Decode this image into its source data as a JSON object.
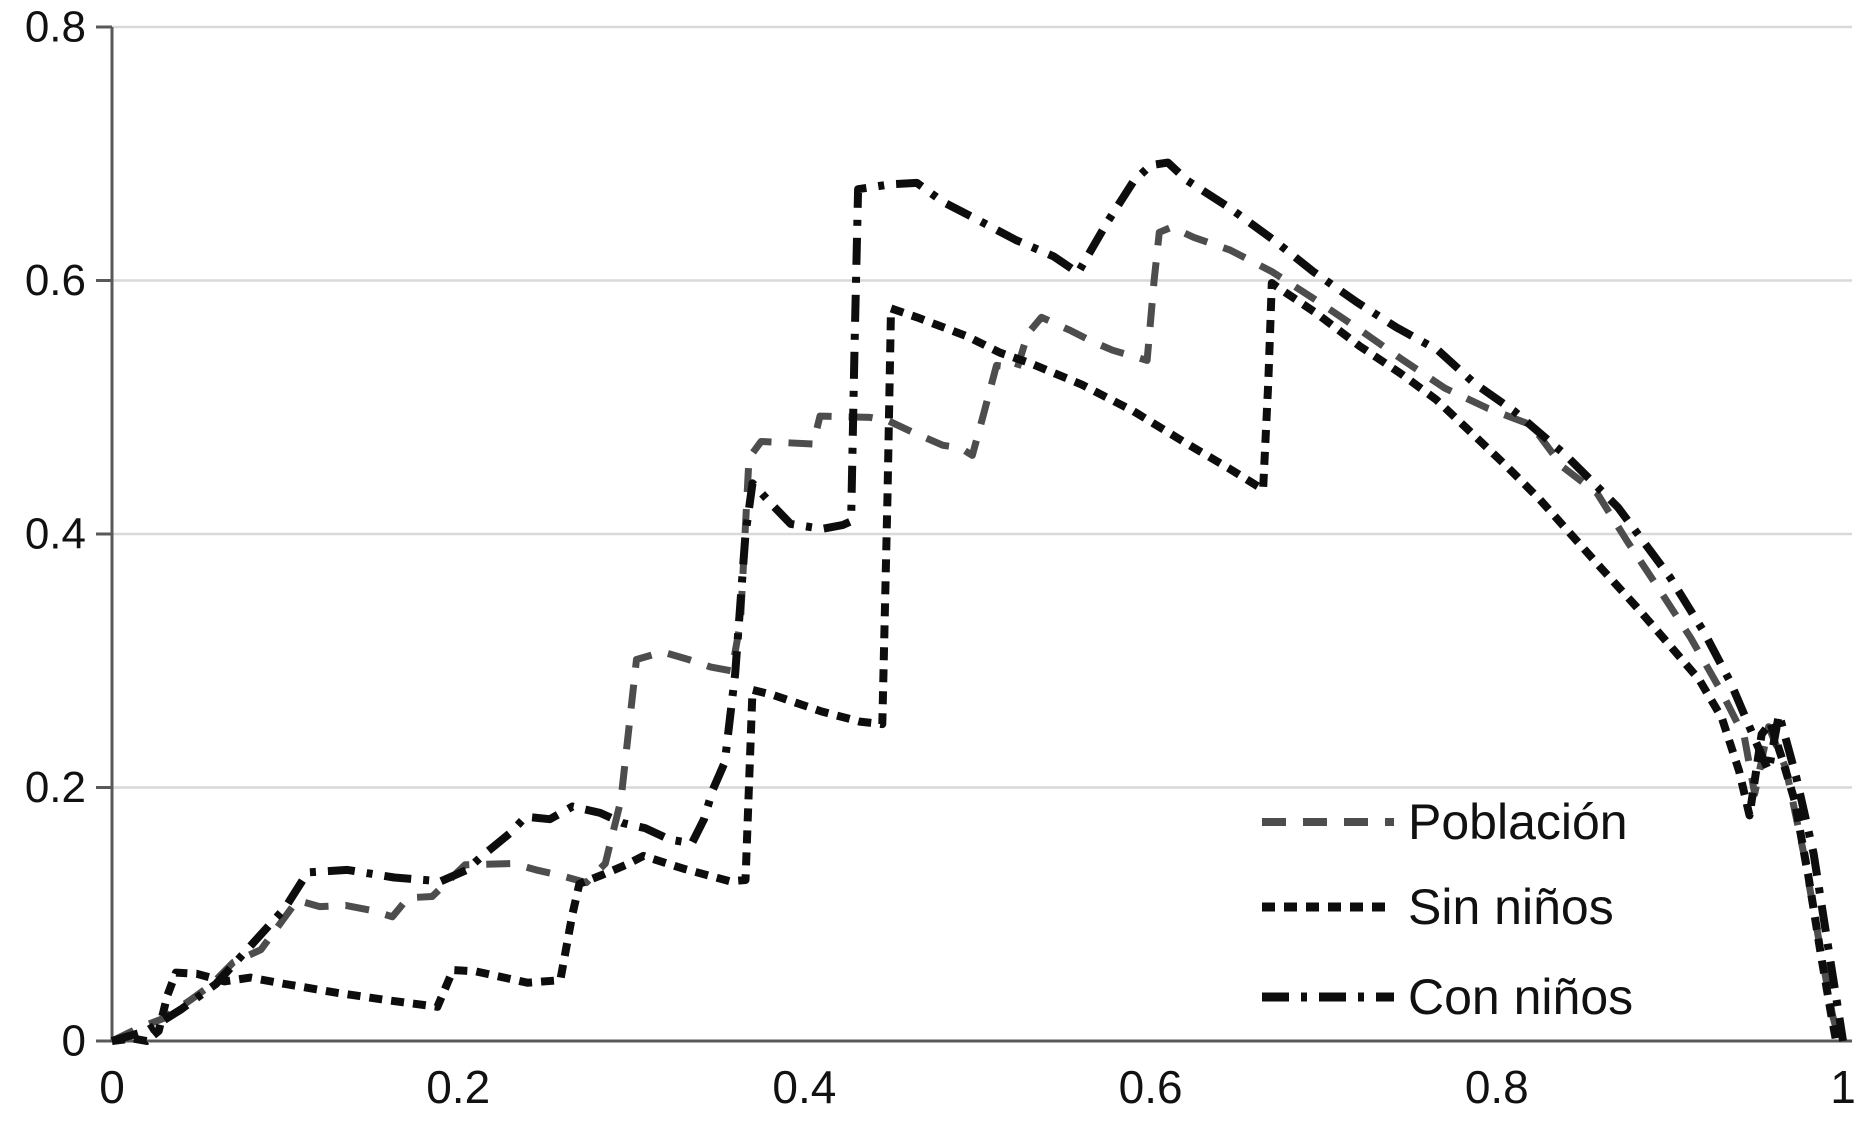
{
  "chart_data": {
    "type": "line",
    "title": "",
    "xlabel": "",
    "ylabel": "",
    "xlim": [
      0,
      1
    ],
    "ylim": [
      0,
      0.8
    ],
    "x_ticks": [
      "0",
      "0.2",
      "0.4",
      "0.6",
      "0.8",
      "1"
    ],
    "x_tick_values": [
      0,
      0.2,
      0.4,
      0.6,
      0.8,
      1
    ],
    "y_ticks": [
      "0",
      "0.2",
      "0.4",
      "0.6",
      "0.8"
    ],
    "y_tick_values": [
      0,
      0.2,
      0.4,
      0.6,
      0.8
    ],
    "grid": "horizontal",
    "legend_position": "inside-lower-right",
    "axis_color": "#595959",
    "grid_color": "#d9d9d9",
    "text_color": "#111111",
    "series": [
      {
        "name": "Población",
        "id": "poblacion",
        "color": "#4d4d4d",
        "dash_style": "long-dash",
        "dash_array": "24 17",
        "stroke_width": 7,
        "points": [
          [
            0,
            0
          ],
          [
            0.015,
            0.01
          ],
          [
            0.03,
            0.018
          ],
          [
            0.045,
            0.032
          ],
          [
            0.057,
            0.044
          ],
          [
            0.07,
            0.062
          ],
          [
            0.086,
            0.072
          ],
          [
            0.093,
            0.085
          ],
          [
            0.107,
            0.111
          ],
          [
            0.12,
            0.106
          ],
          [
            0.135,
            0.107
          ],
          [
            0.15,
            0.103
          ],
          [
            0.162,
            0.098
          ],
          [
            0.171,
            0.113
          ],
          [
            0.185,
            0.114
          ],
          [
            0.204,
            0.139
          ],
          [
            0.232,
            0.14
          ],
          [
            0.245,
            0.135
          ],
          [
            0.258,
            0.131
          ],
          [
            0.274,
            0.125
          ],
          [
            0.285,
            0.14
          ],
          [
            0.294,
            0.19
          ],
          [
            0.303,
            0.301
          ],
          [
            0.318,
            0.307
          ],
          [
            0.333,
            0.301
          ],
          [
            0.346,
            0.295
          ],
          [
            0.358,
            0.292
          ],
          [
            0.363,
            0.33
          ],
          [
            0.368,
            0.46
          ],
          [
            0.375,
            0.473
          ],
          [
            0.405,
            0.471
          ],
          [
            0.409,
            0.493
          ],
          [
            0.438,
            0.492
          ],
          [
            0.449,
            0.489
          ],
          [
            0.463,
            0.48
          ],
          [
            0.48,
            0.47
          ],
          [
            0.49,
            0.468
          ],
          [
            0.497,
            0.462
          ],
          [
            0.503,
            0.492
          ],
          [
            0.511,
            0.533
          ],
          [
            0.523,
            0.531
          ],
          [
            0.529,
            0.558
          ],
          [
            0.537,
            0.571
          ],
          [
            0.553,
            0.561
          ],
          [
            0.566,
            0.552
          ],
          [
            0.578,
            0.545
          ],
          [
            0.598,
            0.537
          ],
          [
            0.602,
            0.6
          ],
          [
            0.605,
            0.638
          ],
          [
            0.612,
            0.642
          ],
          [
            0.625,
            0.634
          ],
          [
            0.646,
            0.624
          ],
          [
            0.67,
            0.607
          ],
          [
            0.695,
            0.585
          ],
          [
            0.72,
            0.562
          ],
          [
            0.745,
            0.538
          ],
          [
            0.77,
            0.515
          ],
          [
            0.795,
            0.499
          ],
          [
            0.82,
            0.486
          ],
          [
            0.838,
            0.453
          ],
          [
            0.858,
            0.432
          ],
          [
            0.875,
            0.395
          ],
          [
            0.893,
            0.358
          ],
          [
            0.912,
            0.318
          ],
          [
            0.93,
            0.275
          ],
          [
            0.943,
            0.24
          ],
          [
            0.949,
            0.195
          ],
          [
            0.957,
            0.248
          ],
          [
            0.967,
            0.215
          ],
          [
            0.977,
            0.15
          ],
          [
            0.986,
            0.08
          ],
          [
            0.994,
            0.02
          ],
          [
            0.998,
            0.0
          ]
        ]
      },
      {
        "name": "Sin niños",
        "id": "sin-ninos",
        "color": "#0d0d0d",
        "dash_style": "short-dash",
        "dash_array": "13 9",
        "stroke_width": 8,
        "points": [
          [
            0,
            0
          ],
          [
            0.012,
            0.002
          ],
          [
            0.02,
            0.0
          ],
          [
            0.027,
            0.008
          ],
          [
            0.032,
            0.036
          ],
          [
            0.037,
            0.054
          ],
          [
            0.049,
            0.053
          ],
          [
            0.065,
            0.047
          ],
          [
            0.08,
            0.05
          ],
          [
            0.1,
            0.045
          ],
          [
            0.13,
            0.038
          ],
          [
            0.16,
            0.032
          ],
          [
            0.188,
            0.027
          ],
          [
            0.197,
            0.056
          ],
          [
            0.21,
            0.055
          ],
          [
            0.24,
            0.046
          ],
          [
            0.259,
            0.048
          ],
          [
            0.266,
            0.1
          ],
          [
            0.27,
            0.124
          ],
          [
            0.283,
            0.131
          ],
          [
            0.297,
            0.139
          ],
          [
            0.307,
            0.146
          ],
          [
            0.33,
            0.136
          ],
          [
            0.357,
            0.126
          ],
          [
            0.366,
            0.127
          ],
          [
            0.37,
            0.277
          ],
          [
            0.382,
            0.273
          ],
          [
            0.41,
            0.26
          ],
          [
            0.432,
            0.252
          ],
          [
            0.445,
            0.25
          ],
          [
            0.448,
            0.43
          ],
          [
            0.45,
            0.578
          ],
          [
            0.465,
            0.571
          ],
          [
            0.494,
            0.556
          ],
          [
            0.513,
            0.543
          ],
          [
            0.53,
            0.535
          ],
          [
            0.56,
            0.518
          ],
          [
            0.59,
            0.497
          ],
          [
            0.62,
            0.472
          ],
          [
            0.645,
            0.452
          ],
          [
            0.665,
            0.435
          ],
          [
            0.668,
            0.52
          ],
          [
            0.67,
            0.598
          ],
          [
            0.673,
            0.595
          ],
          [
            0.696,
            0.574
          ],
          [
            0.721,
            0.548
          ],
          [
            0.744,
            0.527
          ],
          [
            0.765,
            0.506
          ],
          [
            0.786,
            0.479
          ],
          [
            0.806,
            0.453
          ],
          [
            0.825,
            0.427
          ],
          [
            0.842,
            0.401
          ],
          [
            0.861,
            0.372
          ],
          [
            0.881,
            0.342
          ],
          [
            0.9,
            0.312
          ],
          [
            0.917,
            0.285
          ],
          [
            0.93,
            0.255
          ],
          [
            0.94,
            0.213
          ],
          [
            0.946,
            0.178
          ],
          [
            0.953,
            0.242
          ],
          [
            0.958,
            0.251
          ],
          [
            0.965,
            0.222
          ],
          [
            0.972,
            0.19
          ],
          [
            0.98,
            0.13
          ],
          [
            0.987,
            0.07
          ],
          [
            0.993,
            0.022
          ],
          [
            0.996,
            0.0
          ]
        ]
      },
      {
        "name": "Con niños",
        "id": "con-ninos",
        "color": "#0d0d0d",
        "dash_style": "dash-dot",
        "dash_array": "27 12 6 12",
        "stroke_width": 8,
        "points": [
          [
            0,
            0
          ],
          [
            0.02,
            0.008
          ],
          [
            0.04,
            0.025
          ],
          [
            0.06,
            0.045
          ],
          [
            0.08,
            0.075
          ],
          [
            0.1,
            0.105
          ],
          [
            0.113,
            0.133
          ],
          [
            0.136,
            0.135
          ],
          [
            0.163,
            0.129
          ],
          [
            0.19,
            0.126
          ],
          [
            0.205,
            0.135
          ],
          [
            0.213,
            0.145
          ],
          [
            0.23,
            0.164
          ],
          [
            0.239,
            0.177
          ],
          [
            0.253,
            0.175
          ],
          [
            0.266,
            0.185
          ],
          [
            0.282,
            0.18
          ],
          [
            0.295,
            0.172
          ],
          [
            0.308,
            0.168
          ],
          [
            0.322,
            0.159
          ],
          [
            0.335,
            0.156
          ],
          [
            0.342,
            0.175
          ],
          [
            0.347,
            0.198
          ],
          [
            0.354,
            0.22
          ],
          [
            0.36,
            0.29
          ],
          [
            0.366,
            0.4
          ],
          [
            0.37,
            0.44
          ],
          [
            0.38,
            0.425
          ],
          [
            0.392,
            0.408
          ],
          [
            0.41,
            0.404
          ],
          [
            0.422,
            0.407
          ],
          [
            0.427,
            0.41
          ],
          [
            0.429,
            0.55
          ],
          [
            0.431,
            0.672
          ],
          [
            0.45,
            0.676
          ],
          [
            0.465,
            0.677
          ],
          [
            0.48,
            0.662
          ],
          [
            0.5,
            0.648
          ],
          [
            0.522,
            0.632
          ],
          [
            0.544,
            0.619
          ],
          [
            0.558,
            0.606
          ],
          [
            0.575,
            0.646
          ],
          [
            0.59,
            0.678
          ],
          [
            0.6,
            0.691
          ],
          [
            0.61,
            0.693
          ],
          [
            0.621,
            0.679
          ],
          [
            0.646,
            0.657
          ],
          [
            0.671,
            0.632
          ],
          [
            0.694,
            0.607
          ],
          [
            0.719,
            0.583
          ],
          [
            0.742,
            0.563
          ],
          [
            0.766,
            0.545
          ],
          [
            0.787,
            0.519
          ],
          [
            0.81,
            0.497
          ],
          [
            0.84,
            0.462
          ],
          [
            0.87,
            0.421
          ],
          [
            0.9,
            0.366
          ],
          [
            0.92,
            0.322
          ],
          [
            0.935,
            0.283
          ],
          [
            0.95,
            0.235
          ],
          [
            0.957,
            0.213
          ],
          [
            0.963,
            0.258
          ],
          [
            0.973,
            0.208
          ],
          [
            0.983,
            0.148
          ],
          [
            0.991,
            0.078
          ],
          [
            0.998,
            0.018
          ],
          [
            1.0,
            0.0
          ]
        ]
      }
    ]
  },
  "legend": {
    "items": [
      {
        "label": "Población"
      },
      {
        "label": "Sin niños"
      },
      {
        "label": "Con niños"
      }
    ]
  }
}
